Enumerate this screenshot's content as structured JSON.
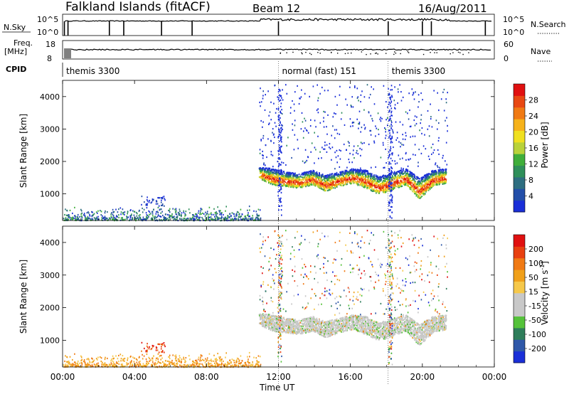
{
  "header": {
    "title": "Falkland Islands (fitACF)",
    "beam": "Beam 12",
    "date": "16/Aug/2011"
  },
  "strips": {
    "nsky_label": "N.Sky",
    "nsky_ticks": [
      "10^5",
      "10^0"
    ],
    "nsearch_label": "N.Search",
    "nsearch_ticks": [
      "10^5",
      "10^0"
    ],
    "freq_label": "Freq.",
    "freq_unit": "[MHz]",
    "freq_ticks": [
      "18",
      "8"
    ],
    "nave_label": "Nave",
    "nave_ticks": [
      "60",
      "0"
    ],
    "cpid_label": "CPID"
  },
  "cpid_segments": [
    {
      "label": "themis 3300",
      "start_hour": 0.0
    },
    {
      "label": "normal (fast) 151",
      "start_hour": 12.0
    },
    {
      "label": "themis 3300",
      "start_hour": 18.1
    }
  ],
  "time_axis": {
    "label": "Time UT",
    "ticks": [
      "00:00",
      "04:00",
      "08:00",
      "12:00",
      "16:00",
      "20:00",
      "00:00"
    ],
    "tick_hours": [
      0,
      4,
      8,
      12,
      16,
      20,
      24
    ]
  },
  "chart_data": [
    {
      "type": "heatmap",
      "panel": "power",
      "ylabel": "Slant Range [km]",
      "yticks": [
        1000,
        2000,
        3000,
        4000
      ],
      "ylim": [
        180,
        4500
      ],
      "xlim_hours": [
        0,
        24
      ],
      "colorbar": {
        "label": "Power [dB]",
        "ticks": [
          "4",
          "8",
          "12",
          "16",
          "20",
          "24",
          "28"
        ],
        "colors": [
          "#1a2fd8",
          "#234ea8",
          "#2e6e80",
          "#2f8f5a",
          "#3fae3a",
          "#b9d23a",
          "#f0e020",
          "#f6b21a",
          "#f07a14",
          "#e84812",
          "#e01010"
        ]
      },
      "echo_band": {
        "start_hour": 10.9,
        "end_hour": 21.3,
        "range_low_km": [
          1500,
          1300,
          1250,
          1200,
          1300,
          1100,
          1250,
          1350,
          1200,
          1000,
          1150,
          1300,
          850,
          1250,
          1350
        ],
        "range_high_km": [
          1850,
          1800,
          1700,
          1650,
          1750,
          1600,
          1700,
          1800,
          1750,
          1550,
          1700,
          1800,
          1500,
          1750,
          1800
        ]
      }
    },
    {
      "type": "heatmap",
      "panel": "velocity",
      "ylabel": "Slant Range [km]",
      "yticks": [
        1000,
        2000,
        3000,
        4000
      ],
      "ylim": [
        180,
        4500
      ],
      "xlim_hours": [
        0,
        24
      ],
      "colorbar": {
        "label": "Velocity [m s^-1]",
        "ticks": [
          "200",
          "100",
          "50",
          "15",
          "-15",
          "-50",
          "-100",
          "-200"
        ],
        "colors": [
          "#1a2fd8",
          "#2f58a8",
          "#2e7d5a",
          "#55c23a",
          "#c8c8c8",
          "#c8c8c8",
          "#f6c84a",
          "#f0a01a",
          "#f07a14",
          "#e84010",
          "#e01010"
        ]
      }
    }
  ]
}
